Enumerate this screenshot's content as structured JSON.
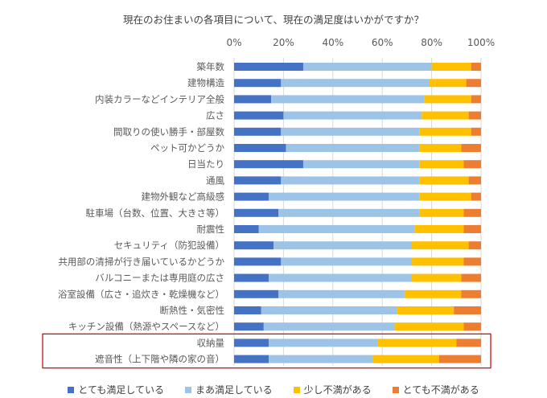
{
  "chart_data": {
    "type": "bar",
    "orientation": "horizontal",
    "stacked": true,
    "title": "現在のお住まいの各項目について、現在の満足度はいかがですか？",
    "x_ticks": [
      "0%",
      "20%",
      "40%",
      "60%",
      "80%",
      "100%"
    ],
    "xlim": [
      0,
      100
    ],
    "grid": true,
    "legend_position": "bottom",
    "categories": [
      "築年数",
      "建物構造",
      "内装カラーなどインテリア全般",
      "広さ",
      "間取りの使い勝手・部屋数",
      "ペット可かどうか",
      "日当たり",
      "通風",
      "建物外観など高級感",
      "駐車場（台数、位置、大きさ等）",
      "耐震性",
      "セキュリティ（防犯設備）",
      "共用部の清掃が行き届いているかどうか",
      "バルコニーまたは専用庭の広さ",
      "浴室設備（広さ・追炊き・乾燥機など）",
      "断熱性・気密性",
      "キッチン設備（熱源やスペースなど）",
      "収納量",
      "遮音性（上下階や隣の家の音）"
    ],
    "series": [
      {
        "name": "とても満足している",
        "color": "#4472C4",
        "values": [
          28,
          19,
          15,
          20,
          19,
          21,
          28,
          19,
          14,
          18,
          10,
          16,
          19,
          14,
          18,
          11,
          12,
          14,
          14
        ]
      },
      {
        "name": "まあ満足している",
        "color": "#9DC3E6",
        "values": [
          52,
          60,
          62,
          56,
          56,
          54,
          47,
          56,
          61,
          57,
          63,
          56,
          53,
          58,
          51,
          55,
          53,
          44,
          42
        ]
      },
      {
        "name": "少し不満がある",
        "color": "#FFC000",
        "values": [
          16,
          15,
          19,
          19,
          21,
          17,
          18,
          20,
          21,
          18,
          20,
          23,
          21,
          20,
          23,
          23,
          28,
          32,
          27
        ]
      },
      {
        "name": "とても不満がある",
        "color": "#ED7D31",
        "values": [
          4,
          6,
          4,
          5,
          4,
          8,
          7,
          5,
          4,
          7,
          7,
          5,
          7,
          8,
          8,
          11,
          7,
          10,
          17
        ]
      }
    ],
    "highlighted_categories": [
      "収納量",
      "遮音性（上下階や隣の家の音）"
    ],
    "highlight_color": "#C00000"
  }
}
